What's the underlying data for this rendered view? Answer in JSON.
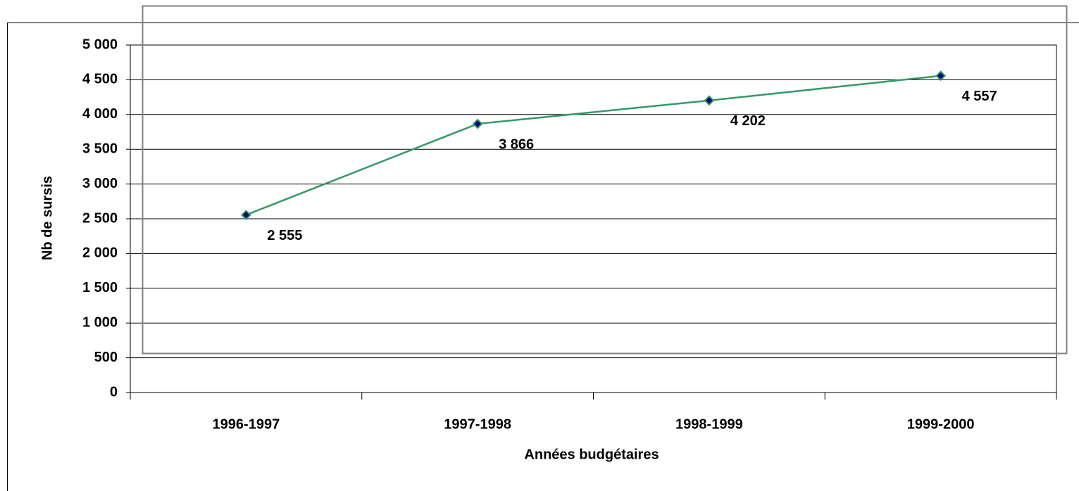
{
  "chart_data": {
    "type": "line",
    "x_label": "Années budgétaires",
    "y_label": "Nb de sursis",
    "categories": [
      "1996-1997",
      "1997-1998",
      "1998-1999",
      "1999-2000"
    ],
    "series": [
      {
        "name": "Nb de sursis",
        "color": "#339966",
        "marker_color": "#000080",
        "values": [
          2555,
          3866,
          4202,
          4557
        ],
        "value_labels": [
          "2 555",
          "3 866",
          "4 202",
          "4 557"
        ]
      }
    ],
    "ylim": [
      0,
      5000
    ],
    "yticks": [
      0,
      500,
      {
        "value": 1000,
        "label": "1 000"
      },
      {
        "value": 1500,
        "label": "1 500"
      },
      {
        "value": 2000,
        "label": "2 000"
      },
      {
        "value": 2500,
        "label": "2 500"
      },
      {
        "value": 3000,
        "label": "3 000"
      },
      {
        "value": 3500,
        "label": "3 500"
      },
      {
        "value": 4000,
        "label": "4 000"
      },
      {
        "value": 4500,
        "label": "4 500"
      },
      {
        "value": 5000,
        "label": "5 000"
      }
    ],
    "grid": true
  }
}
